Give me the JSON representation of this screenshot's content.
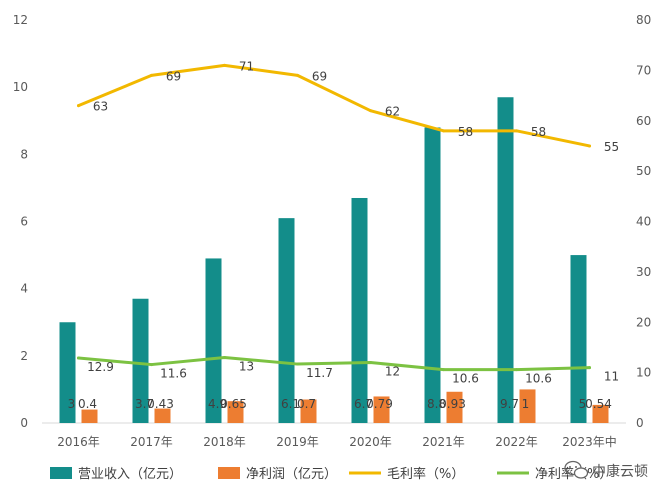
{
  "chart_data": {
    "type": "bar",
    "categories": [
      "2016年",
      "2017年",
      "2018年",
      "2019年",
      "2020年",
      "2021年",
      "2022年",
      "2023年中"
    ],
    "left_axis": {
      "ylim": [
        0,
        12
      ],
      "ticks": [
        "0",
        "2",
        "4",
        "6",
        "8",
        "10",
        "12"
      ]
    },
    "right_axis": {
      "ylim": [
        0,
        80
      ],
      "ticks": [
        "0",
        "10",
        "20",
        "30",
        "40",
        "50",
        "60",
        "70",
        "80"
      ]
    },
    "series": [
      {
        "name": "营业收入（亿元）",
        "kind": "bar",
        "axis": "left",
        "color": "#138d8a",
        "values": [
          3,
          3.7,
          4.9,
          6.1,
          6.7,
          8.8,
          9.7,
          5
        ],
        "labels": [
          "3",
          "3.7",
          "4.9",
          "6.1",
          "6.7",
          "8.8",
          "9.7",
          "5"
        ]
      },
      {
        "name": "净利润（亿元）",
        "kind": "bar",
        "axis": "left",
        "color": "#ed7d31",
        "values": [
          0.4,
          0.43,
          0.65,
          0.7,
          0.79,
          0.93,
          1,
          0.54
        ],
        "labels": [
          "0.4",
          "0.43",
          "0.65",
          "0.7",
          "0.79",
          "0.93",
          "1",
          "0.54"
        ]
      },
      {
        "name": "毛利率（%）",
        "kind": "line",
        "axis": "right",
        "color": "#f2b800",
        "values": [
          63,
          69,
          71,
          69,
          62,
          58,
          58,
          55
        ],
        "labels": [
          "63",
          "69",
          "71",
          "69",
          "62",
          "58",
          "58",
          "55"
        ]
      },
      {
        "name": "净利率（%）",
        "kind": "line",
        "axis": "right",
        "color": "#7cc242",
        "values": [
          12.9,
          11.6,
          13,
          11.7,
          12,
          10.6,
          10.6,
          11
        ],
        "labels": [
          "12.9",
          "11.6",
          "13",
          "11.7",
          "12",
          "10.6",
          "10.6",
          "11"
        ]
      }
    ],
    "legend_position": "bottom",
    "grid": false
  },
  "watermark": {
    "icon": "wechat-icon",
    "text": "中康云顿"
  }
}
